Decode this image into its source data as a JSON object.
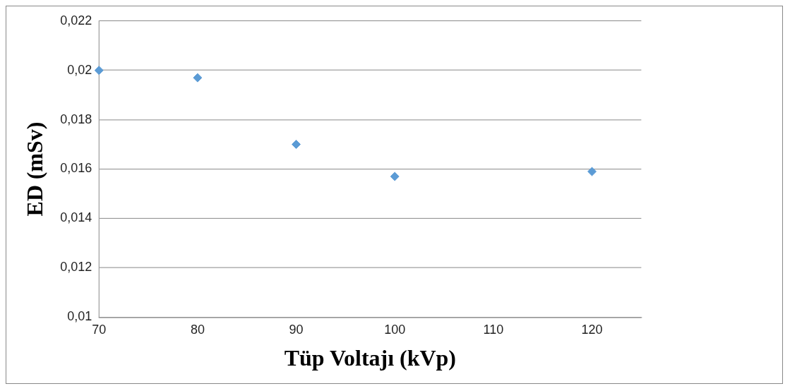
{
  "chart_data": {
    "type": "scatter",
    "xlabel": "Tüp Voltajı (kVp)",
    "ylabel": "ED (mSv)",
    "x": [
      70,
      80,
      90,
      100,
      120
    ],
    "series": [
      {
        "color": "#5b9bd5",
        "values": [
          0.02,
          0.0197,
          0.017,
          0.0157,
          0.0159
        ]
      }
    ],
    "xlim": [
      70,
      125
    ],
    "xticks": [
      70,
      80,
      90,
      100,
      110,
      120
    ],
    "ylim": [
      0.01,
      0.022
    ],
    "yticks": [
      {
        "value": 0.01,
        "label": "0,01"
      },
      {
        "value": 0.012,
        "label": "0,012"
      },
      {
        "value": 0.014,
        "label": "0,014"
      },
      {
        "value": 0.016,
        "label": "0,016"
      },
      {
        "value": 0.018,
        "label": "0,018"
      },
      {
        "value": 0.02,
        "label": "0,02"
      },
      {
        "value": 0.022,
        "label": "0,022"
      }
    ],
    "grid": "y",
    "marker": "diamond",
    "legend": false
  }
}
